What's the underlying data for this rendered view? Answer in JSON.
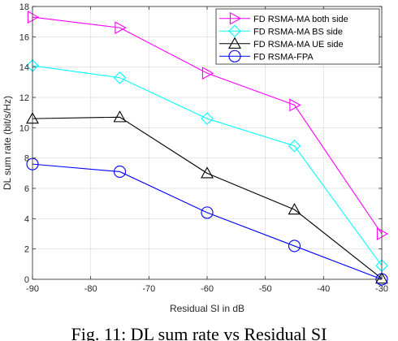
{
  "caption": "Fig. 11: DL sum rate vs Residual SI",
  "chart_data": {
    "type": "line",
    "xlabel": "Residual SI in dB",
    "ylabel": "DL sum rate (bit/s/Hz)",
    "xlim": [
      -90,
      -30
    ],
    "ylim": [
      0,
      18
    ],
    "xticks": [
      -90,
      -80,
      -70,
      -60,
      -50,
      -40,
      -30
    ],
    "yticks": [
      0,
      2,
      4,
      6,
      8,
      10,
      12,
      14,
      16,
      18
    ],
    "grid": true,
    "legend_position": "top-right",
    "x": [
      -90,
      -75,
      -60,
      -45,
      -30
    ],
    "series": [
      {
        "name": "FD RSMA-MA both side",
        "color": "#ff00ff",
        "marker": "triangle-right",
        "values": [
          17.3,
          16.6,
          13.6,
          11.5,
          3.0
        ]
      },
      {
        "name": "FD RSMA-MA BS side",
        "color": "#00ffff",
        "marker": "diamond",
        "values": [
          14.1,
          13.3,
          10.6,
          8.8,
          0.9
        ]
      },
      {
        "name": "FD RSMA-MA UE side",
        "color": "#000000",
        "marker": "triangle-up",
        "values": [
          10.6,
          10.7,
          7.0,
          4.6,
          0.05
        ]
      },
      {
        "name": "FD RSMA-FPA",
        "color": "#0000ff",
        "marker": "circle",
        "values": [
          7.6,
          7.1,
          4.4,
          2.2,
          0.0
        ]
      }
    ]
  }
}
